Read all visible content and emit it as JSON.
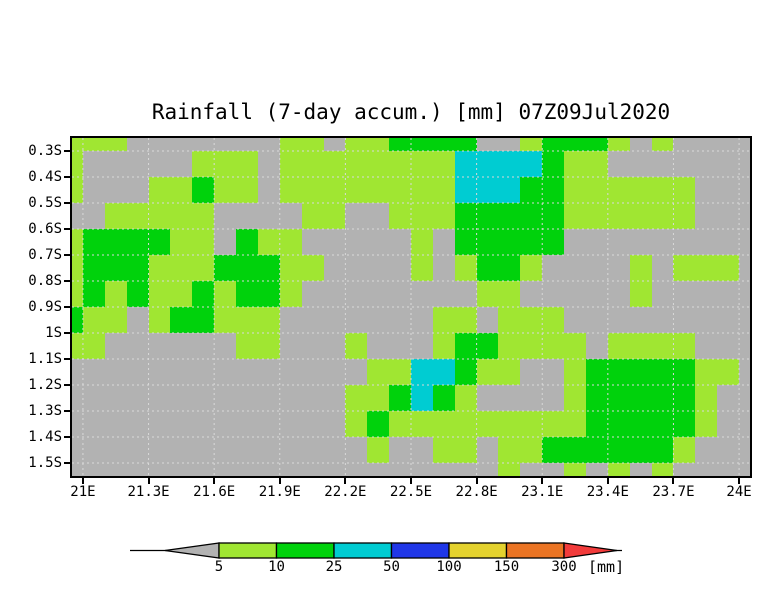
{
  "title": "Rainfall (7-day accum.) [mm] 07Z09Jul2020",
  "chart_data": {
    "type": "heatmap",
    "title": "Rainfall (7-day accum.) [mm] 07Z09Jul2020",
    "unit": "[mm]",
    "x_axis": {
      "tick_labels": [
        "21E",
        "21.3E",
        "21.6E",
        "21.9E",
        "22.2E",
        "22.5E",
        "22.8E",
        "23.1E",
        "23.4E",
        "23.7E",
        "24E"
      ],
      "tick_values": [
        21.0,
        21.3,
        21.6,
        21.9,
        22.2,
        22.5,
        22.8,
        23.1,
        23.4,
        23.7,
        24.0
      ],
      "range_lon": [
        20.95,
        24.05
      ]
    },
    "y_axis": {
      "tick_labels": [
        "0.3S",
        "0.4S",
        "0.5S",
        "0.6S",
        "0.7S",
        "0.8S",
        "0.9S",
        "1S",
        "1.1S",
        "1.2S",
        "1.3S",
        "1.4S",
        "1.5S"
      ],
      "tick_values": [
        0.3,
        0.4,
        0.5,
        0.6,
        0.7,
        0.8,
        0.9,
        1.0,
        1.1,
        1.2,
        1.3,
        1.4,
        1.5
      ],
      "range_lat_south": [
        0.25,
        1.55
      ]
    },
    "cell_size_deg": 0.1,
    "grid_note": "14 rows (0.25S-1.55S, first/last are half rows) x 32 cols (20.95E-24.05E, first/last are half cols). G=<5mm gray, L=5-10mm yellowgreen, D=10-25mm green, C=25-50mm cyan",
    "palette": {
      "G": "#b2b2b2",
      "L": "#a0e632",
      "D": "#00d20c",
      "C": "#00ccd2"
    },
    "grid": [
      "LLLGGGGGGGLLGLLDDDDGGLDDDLGLGGGG",
      "LGGGGGLLLGLLLLLLLLCCCCDLLGGGGGGG",
      "LGGGLLDLLGLLLLLLLLCCCDDLLLLLLGGG",
      "GGLLLLLGGGGLLGGLLLDDDDDLLLLLLGGG",
      "LDDDDLLGDLLGGGGGLGDDDDDGGGGGGGGG",
      "LDDDLLLDDDLLGGGGLGLDDLGGGGLGLLLG",
      "LDLDLLDLDDLGGGGGGGGLLGGGGGLGGGGG",
      "DLLGLDDLLLGGGGGGGLLGLLLGGGGGGGGG",
      "LLGGGGGGLLGGGLGGGLDDLLLLGLLLLGGG",
      "GGGGGGGGGGGGGGLLCCDLLGGLDDDDDLLG",
      "GGGGGGGGGGGGGLLDCDLGGGGLDDDDDLGG",
      "GGGGGGGGGGGGGLDLLLLLLLLLDDDDDLGG",
      "GGGGGGGGGGGGGGLGGLLGLLDDDDDDLGGG",
      "GGGGGGGGGGGGGGGGGGGGLGGLGLGLGGGG"
    ],
    "colorbar": {
      "tick_labels": [
        "5",
        "10",
        "25",
        "50",
        "100",
        "150",
        "300"
      ],
      "unit": "[mm]",
      "segment_colors": [
        "#b2b2b2",
        "#a0e632",
        "#00d20c",
        "#00ccd2",
        "#2037e8",
        "#e4d22e",
        "#eb7423",
        "#f23b3b"
      ],
      "legend_position": "bottom"
    },
    "gridline_color": "#d9d9d9"
  }
}
